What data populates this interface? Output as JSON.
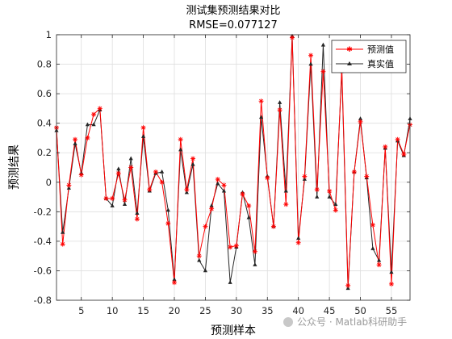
{
  "chart_data": {
    "type": "line",
    "title": "测试集预测结果对比",
    "subtitle": "RMSE=0.077127",
    "xlabel": "预测样本",
    "ylabel": "预测结果",
    "xlim": [
      1,
      58
    ],
    "ylim": [
      -0.8,
      1
    ],
    "xticks": [
      5,
      10,
      15,
      20,
      25,
      30,
      35,
      40,
      45,
      50,
      55
    ],
    "yticks": [
      -0.8,
      -0.6,
      -0.4,
      -0.2,
      0,
      0.2,
      0.4,
      0.6,
      0.8,
      1
    ],
    "grid": true,
    "legend_position": "top-right",
    "x": [
      1,
      2,
      3,
      4,
      5,
      6,
      7,
      8,
      9,
      10,
      11,
      12,
      13,
      14,
      15,
      16,
      17,
      18,
      19,
      20,
      21,
      22,
      23,
      24,
      25,
      26,
      27,
      28,
      29,
      30,
      31,
      32,
      33,
      34,
      35,
      36,
      37,
      38,
      39,
      40,
      41,
      42,
      43,
      44,
      45,
      46,
      47,
      48,
      49,
      50,
      51,
      52,
      53,
      54,
      55,
      56,
      57,
      58
    ],
    "series": [
      {
        "name": "预测值",
        "color": "#ff0000",
        "marker": "star",
        "values": [
          0.37,
          -0.42,
          -0.02,
          0.29,
          0.05,
          0.3,
          0.46,
          0.5,
          -0.11,
          -0.11,
          0.06,
          -0.12,
          0.1,
          -0.25,
          0.37,
          -0.05,
          0.07,
          0.0,
          -0.28,
          -0.68,
          0.29,
          -0.05,
          0.16,
          -0.5,
          -0.3,
          -0.18,
          0.02,
          -0.02,
          -0.44,
          -0.43,
          -0.08,
          -0.16,
          -0.47,
          0.55,
          0.03,
          -0.3,
          0.49,
          -0.15,
          0.98,
          -0.41,
          0.04,
          0.86,
          -0.05,
          0.75,
          -0.06,
          -0.19,
          0.78,
          -0.7,
          0.07,
          0.41,
          0.04,
          -0.29,
          -0.56,
          0.24,
          -0.69,
          0.29,
          0.19,
          0.39
        ]
      },
      {
        "name": "真实值",
        "color": "#262626",
        "marker": "triangle",
        "values": [
          0.35,
          -0.34,
          -0.04,
          0.26,
          0.06,
          0.39,
          0.39,
          0.49,
          -0.11,
          -0.16,
          0.09,
          -0.15,
          0.16,
          -0.21,
          0.31,
          -0.06,
          0.06,
          0.07,
          -0.19,
          -0.66,
          0.22,
          -0.07,
          0.12,
          -0.53,
          -0.6,
          -0.16,
          -0.01,
          -0.06,
          -0.68,
          -0.44,
          -0.07,
          -0.24,
          -0.56,
          0.44,
          0.04,
          -0.3,
          0.54,
          -0.06,
          0.99,
          -0.38,
          0.02,
          0.8,
          -0.1,
          0.93,
          -0.1,
          -0.15,
          0.75,
          -0.72,
          0.07,
          0.43,
          0.03,
          -0.45,
          -0.53,
          0.23,
          -0.61,
          0.28,
          0.18,
          0.43
        ]
      }
    ]
  },
  "watermark": "公众号 · Matlab科研助手"
}
